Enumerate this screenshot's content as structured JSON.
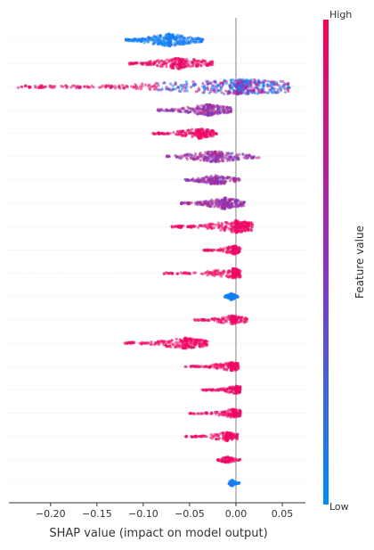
{
  "chart_data": {
    "type": "scatter",
    "subtype": "shap-beeswarm",
    "title": "",
    "xlabel": "SHAP value (impact on model output)",
    "xlim": [
      -0.245,
      0.075
    ],
    "xticks": [
      -0.2,
      -0.15,
      -0.1,
      -0.05,
      0.0,
      0.05
    ],
    "xtick_labels": [
      "−0.20",
      "−0.15",
      "−0.10",
      "−0.05",
      "0.00",
      "0.05"
    ],
    "colorbar": {
      "label": "Feature value",
      "high_label": "High",
      "low_label": "Low",
      "high_color": "#ff0052",
      "low_color": "#008bfb"
    },
    "colors": {
      "zero_line": "#999999",
      "row_grid": "#cccccc",
      "axis": "#333333"
    },
    "rows": [
      {
        "start": -0.12,
        "end": -0.035,
        "peak": -0.072,
        "color": "blue",
        "density": 48
      },
      {
        "start": -0.115,
        "end": -0.025,
        "peak": -0.06,
        "color": "red",
        "density": 40
      },
      {
        "start": -0.235,
        "end": 0.058,
        "peak": 0.002,
        "color": "mixed",
        "density": 90
      },
      {
        "start": -0.085,
        "end": -0.005,
        "peak": -0.03,
        "color": "purple",
        "density": 40
      },
      {
        "start": -0.09,
        "end": -0.02,
        "peak": -0.04,
        "color": "red",
        "density": 34
      },
      {
        "start": -0.075,
        "end": 0.025,
        "peak": -0.022,
        "color": "purple",
        "density": 38
      },
      {
        "start": -0.055,
        "end": 0.005,
        "peak": -0.022,
        "color": "purple",
        "density": 30
      },
      {
        "start": -0.06,
        "end": 0.01,
        "peak": -0.012,
        "color": "purple",
        "density": 38
      },
      {
        "start": -0.07,
        "end": 0.018,
        "peak": 0.0,
        "color": "red",
        "density": 44
      },
      {
        "start": -0.035,
        "end": 0.005,
        "peak": -0.002,
        "color": "red",
        "density": 22
      },
      {
        "start": -0.08,
        "end": 0.005,
        "peak": -0.003,
        "color": "red",
        "density": 30
      },
      {
        "start": -0.012,
        "end": 0.003,
        "peak": -0.005,
        "color": "blue",
        "density": 16
      },
      {
        "start": -0.045,
        "end": 0.012,
        "peak": -0.004,
        "color": "red",
        "density": 24
      },
      {
        "start": -0.12,
        "end": -0.03,
        "peak": -0.055,
        "color": "red",
        "density": 38
      },
      {
        "start": -0.055,
        "end": 0.003,
        "peak": -0.005,
        "color": "red",
        "density": 26
      },
      {
        "start": -0.038,
        "end": 0.005,
        "peak": 0.0,
        "color": "red",
        "density": 22
      },
      {
        "start": -0.05,
        "end": 0.005,
        "peak": -0.003,
        "color": "red",
        "density": 24
      },
      {
        "start": -0.055,
        "end": 0.002,
        "peak": -0.01,
        "color": "red",
        "density": 24
      },
      {
        "start": -0.02,
        "end": 0.005,
        "peak": -0.008,
        "color": "red",
        "density": 14
      },
      {
        "start": -0.008,
        "end": 0.004,
        "peak": -0.004,
        "color": "blue",
        "density": 12
      }
    ]
  }
}
